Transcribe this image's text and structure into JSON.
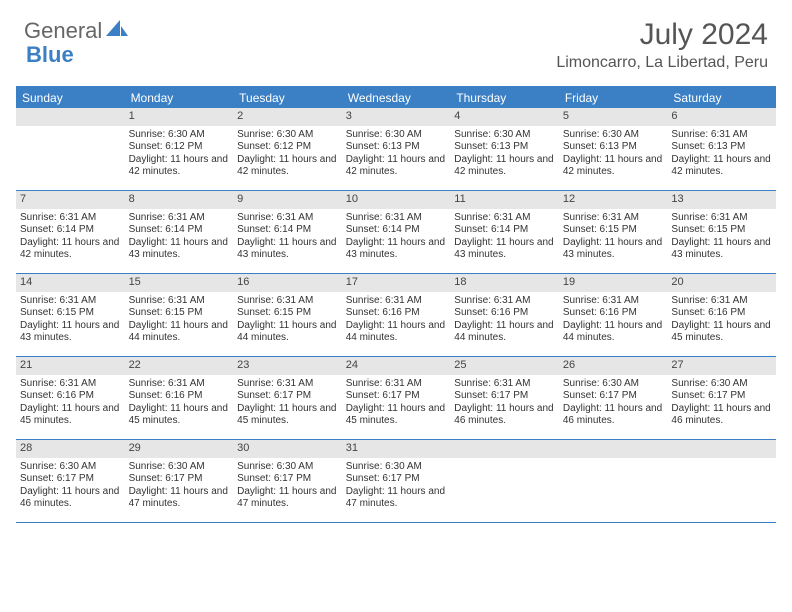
{
  "brand": {
    "part1": "General",
    "part2": "Blue"
  },
  "title": "July 2024",
  "location": "Limoncarro, La Libertad, Peru",
  "colors": {
    "accent": "#3b7fc4",
    "daynum_bg": "#e6e6e6",
    "text": "#333333",
    "header_text": "#555555",
    "background": "#ffffff"
  },
  "day_headers": [
    "Sunday",
    "Monday",
    "Tuesday",
    "Wednesday",
    "Thursday",
    "Friday",
    "Saturday"
  ],
  "layout": {
    "columns": 7,
    "rows": 5,
    "first_weekday_index": 1,
    "days_in_month": 31
  },
  "weeks": [
    [
      null,
      {
        "n": "1",
        "sunrise": "6:30 AM",
        "sunset": "6:12 PM",
        "daylight": "11 hours and 42 minutes."
      },
      {
        "n": "2",
        "sunrise": "6:30 AM",
        "sunset": "6:12 PM",
        "daylight": "11 hours and 42 minutes."
      },
      {
        "n": "3",
        "sunrise": "6:30 AM",
        "sunset": "6:13 PM",
        "daylight": "11 hours and 42 minutes."
      },
      {
        "n": "4",
        "sunrise": "6:30 AM",
        "sunset": "6:13 PM",
        "daylight": "11 hours and 42 minutes."
      },
      {
        "n": "5",
        "sunrise": "6:30 AM",
        "sunset": "6:13 PM",
        "daylight": "11 hours and 42 minutes."
      },
      {
        "n": "6",
        "sunrise": "6:31 AM",
        "sunset": "6:13 PM",
        "daylight": "11 hours and 42 minutes."
      }
    ],
    [
      {
        "n": "7",
        "sunrise": "6:31 AM",
        "sunset": "6:14 PM",
        "daylight": "11 hours and 42 minutes."
      },
      {
        "n": "8",
        "sunrise": "6:31 AM",
        "sunset": "6:14 PM",
        "daylight": "11 hours and 43 minutes."
      },
      {
        "n": "9",
        "sunrise": "6:31 AM",
        "sunset": "6:14 PM",
        "daylight": "11 hours and 43 minutes."
      },
      {
        "n": "10",
        "sunrise": "6:31 AM",
        "sunset": "6:14 PM",
        "daylight": "11 hours and 43 minutes."
      },
      {
        "n": "11",
        "sunrise": "6:31 AM",
        "sunset": "6:14 PM",
        "daylight": "11 hours and 43 minutes."
      },
      {
        "n": "12",
        "sunrise": "6:31 AM",
        "sunset": "6:15 PM",
        "daylight": "11 hours and 43 minutes."
      },
      {
        "n": "13",
        "sunrise": "6:31 AM",
        "sunset": "6:15 PM",
        "daylight": "11 hours and 43 minutes."
      }
    ],
    [
      {
        "n": "14",
        "sunrise": "6:31 AM",
        "sunset": "6:15 PM",
        "daylight": "11 hours and 43 minutes."
      },
      {
        "n": "15",
        "sunrise": "6:31 AM",
        "sunset": "6:15 PM",
        "daylight": "11 hours and 44 minutes."
      },
      {
        "n": "16",
        "sunrise": "6:31 AM",
        "sunset": "6:15 PM",
        "daylight": "11 hours and 44 minutes."
      },
      {
        "n": "17",
        "sunrise": "6:31 AM",
        "sunset": "6:16 PM",
        "daylight": "11 hours and 44 minutes."
      },
      {
        "n": "18",
        "sunrise": "6:31 AM",
        "sunset": "6:16 PM",
        "daylight": "11 hours and 44 minutes."
      },
      {
        "n": "19",
        "sunrise": "6:31 AM",
        "sunset": "6:16 PM",
        "daylight": "11 hours and 44 minutes."
      },
      {
        "n": "20",
        "sunrise": "6:31 AM",
        "sunset": "6:16 PM",
        "daylight": "11 hours and 45 minutes."
      }
    ],
    [
      {
        "n": "21",
        "sunrise": "6:31 AM",
        "sunset": "6:16 PM",
        "daylight": "11 hours and 45 minutes."
      },
      {
        "n": "22",
        "sunrise": "6:31 AM",
        "sunset": "6:16 PM",
        "daylight": "11 hours and 45 minutes."
      },
      {
        "n": "23",
        "sunrise": "6:31 AM",
        "sunset": "6:17 PM",
        "daylight": "11 hours and 45 minutes."
      },
      {
        "n": "24",
        "sunrise": "6:31 AM",
        "sunset": "6:17 PM",
        "daylight": "11 hours and 45 minutes."
      },
      {
        "n": "25",
        "sunrise": "6:31 AM",
        "sunset": "6:17 PM",
        "daylight": "11 hours and 46 minutes."
      },
      {
        "n": "26",
        "sunrise": "6:30 AM",
        "sunset": "6:17 PM",
        "daylight": "11 hours and 46 minutes."
      },
      {
        "n": "27",
        "sunrise": "6:30 AM",
        "sunset": "6:17 PM",
        "daylight": "11 hours and 46 minutes."
      }
    ],
    [
      {
        "n": "28",
        "sunrise": "6:30 AM",
        "sunset": "6:17 PM",
        "daylight": "11 hours and 46 minutes."
      },
      {
        "n": "29",
        "sunrise": "6:30 AM",
        "sunset": "6:17 PM",
        "daylight": "11 hours and 47 minutes."
      },
      {
        "n": "30",
        "sunrise": "6:30 AM",
        "sunset": "6:17 PM",
        "daylight": "11 hours and 47 minutes."
      },
      {
        "n": "31",
        "sunrise": "6:30 AM",
        "sunset": "6:17 PM",
        "daylight": "11 hours and 47 minutes."
      },
      null,
      null,
      null
    ]
  ],
  "labels": {
    "sunrise_prefix": "Sunrise: ",
    "sunset_prefix": "Sunset: ",
    "daylight_prefix": "Daylight: "
  }
}
